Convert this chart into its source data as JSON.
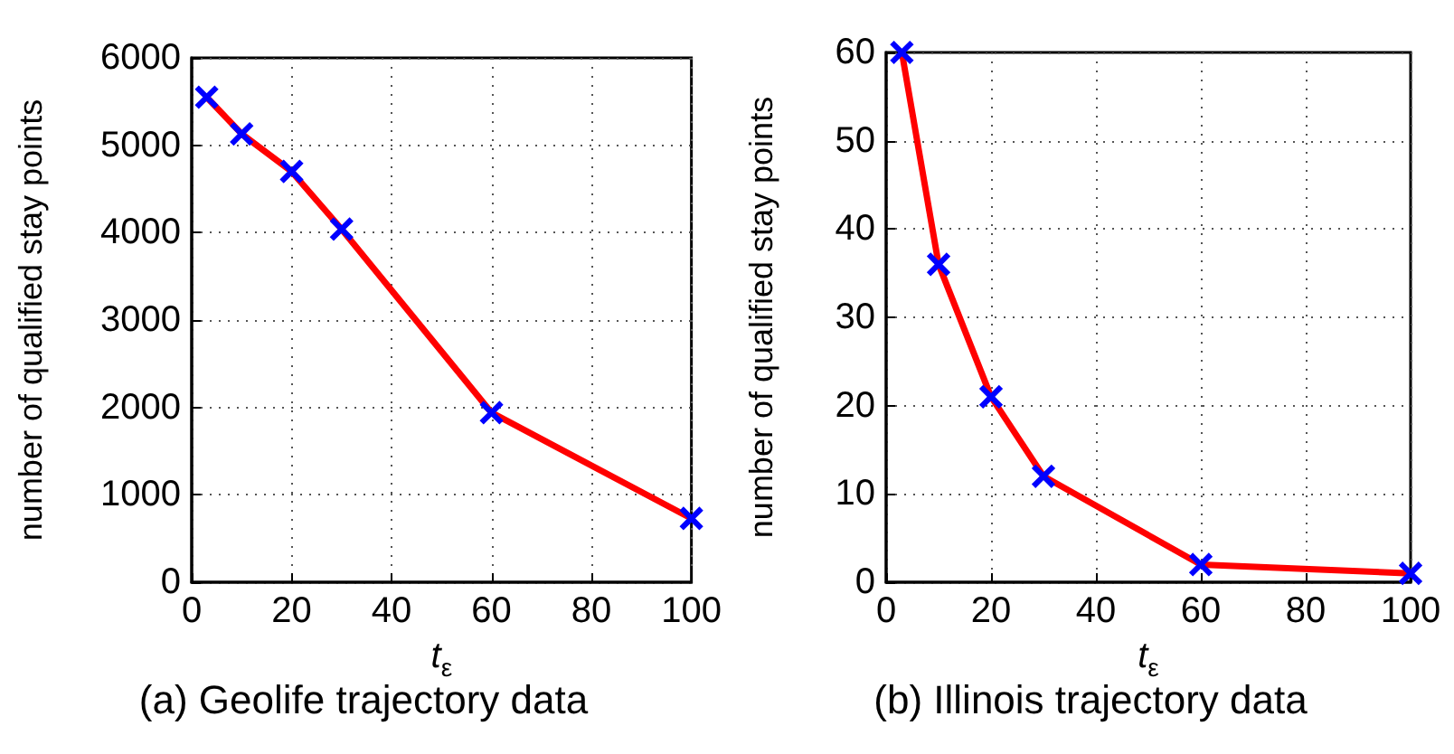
{
  "chart_data": [
    {
      "type": "line",
      "title": "(a) Geolife trajectory data",
      "xlabel": "t$_{ε}$",
      "ylabel": "number of qualified stay points",
      "x": [
        3,
        10,
        20,
        30,
        60,
        100
      ],
      "series": [
        {
          "color": "#ff0000",
          "colors": [
            "#0000ff",
            "#0000ff",
            "#0000ff",
            "#0000ff",
            "#0000ff",
            "#0000ff"
          ],
          "values": [
            5550,
            5130,
            4700,
            4040,
            1940,
            730
          ]
        }
      ],
      "xlim": [
        0,
        100
      ],
      "xticks": [
        0,
        20,
        40,
        60,
        80,
        100
      ],
      "ylim": [
        0,
        6000
      ],
      "yticks": [
        0,
        1000,
        2000,
        3000,
        4000,
        5000,
        6000
      ],
      "grid": true,
      "marker": "cross",
      "line_style": "solid"
    },
    {
      "type": "line",
      "title": "(b) Illinois trajectory data",
      "xlabel": "t$_{ε}$",
      "ylabel": "number of qualified stay points",
      "x": [
        3,
        10,
        20,
        30,
        60,
        100
      ],
      "series": [
        {
          "color": "#ff0000",
          "colors": [
            "#0000ff",
            "#0000ff",
            "#0000ff",
            "#0000ff",
            "#0000ff",
            "#0000ff"
          ],
          "values": [
            60,
            36,
            21,
            12,
            2,
            1
          ]
        }
      ],
      "xlim": [
        0,
        100
      ],
      "xticks": [
        0,
        20,
        40,
        60,
        80,
        100
      ],
      "ylim": [
        0,
        60
      ],
      "yticks": [
        0,
        10,
        20,
        30,
        40,
        50,
        60
      ],
      "grid": true,
      "marker": "cross",
      "line_style": "solid"
    }
  ]
}
